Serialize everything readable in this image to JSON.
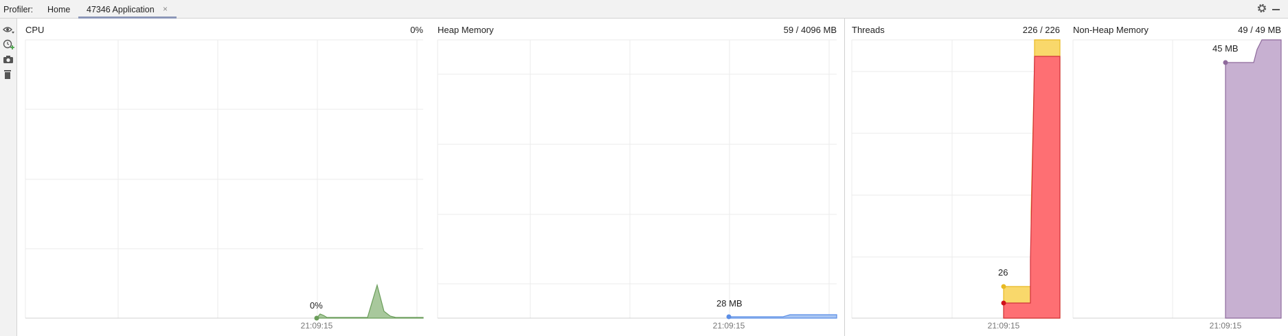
{
  "header": {
    "profiler_label": "Profiler:",
    "tabs": [
      {
        "label": "Home"
      },
      {
        "label": "47346 Application"
      }
    ],
    "close_glyph": "×"
  },
  "toolbar": {
    "icons": [
      "eye-icon",
      "add-clock-icon",
      "camera-icon",
      "trash-icon"
    ],
    "right_icons": [
      "gear-icon",
      "minimize-icon"
    ]
  },
  "panels": {
    "cpu": {
      "title": "CPU",
      "value": "0%",
      "marker_label": "0%",
      "time_label": "21:09:15",
      "color": "#6a9d5a"
    },
    "heap": {
      "title": "Heap Memory",
      "value": "59 / 4096 MB",
      "marker_label": "28 MB",
      "time_label": "21:09:15",
      "color": "#5b8ee6"
    },
    "threads": {
      "title": "Threads",
      "value": "226 / 226",
      "marker_label": "26",
      "time_label": "21:09:15",
      "colors": [
        "#fe6f73",
        "#f9d86b"
      ]
    },
    "nonheap": {
      "title": "Non-Heap Memory",
      "value": "49 / 49 MB",
      "marker_label": "45 MB",
      "time_label": "21:09:15",
      "color": "#c7b0d1"
    }
  }
}
